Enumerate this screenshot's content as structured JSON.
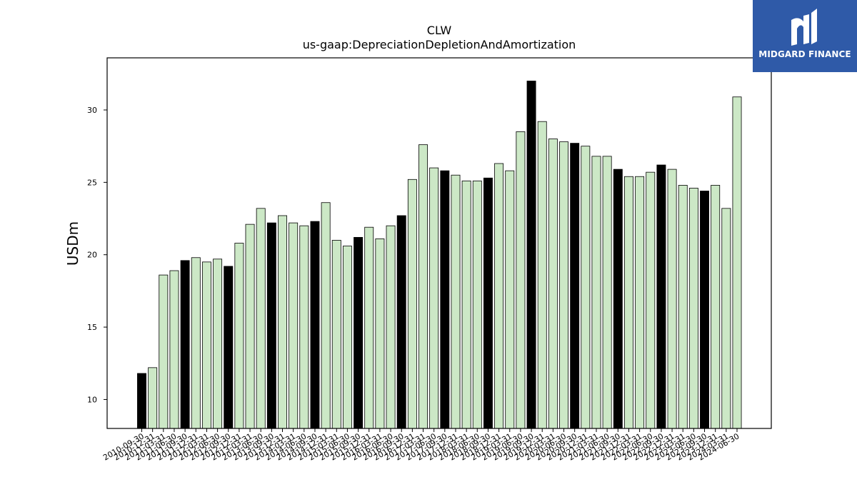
{
  "brand": {
    "name": "MIDGARD FINANCE",
    "color": "#2f5aa8"
  },
  "chart_data": {
    "type": "bar",
    "title": "CLW",
    "subtitle": "us-gaap:DepreciationDepletionAndAmortization",
    "ylabel": "USDm",
    "xlabel": "",
    "ylim": [
      8,
      33.6
    ],
    "yticks": [
      10,
      15,
      20,
      25,
      30
    ],
    "grid": false,
    "colors": {
      "default": "#cce8c6",
      "annual": "#000000",
      "edge": "#000000"
    },
    "categories": [
      "2010-09-30",
      "2010-12-31",
      "2011-03-31",
      "2011-06-30",
      "2011-09-30",
      "2011-12-31",
      "2012-03-31",
      "2012-06-30",
      "2012-09-30",
      "2012-12-31",
      "2013-03-31",
      "2013-06-30",
      "2013-09-30",
      "2013-12-31",
      "2014-03-31",
      "2014-06-30",
      "2014-09-30",
      "2014-12-31",
      "2015-03-31",
      "2015-06-30",
      "2015-09-30",
      "2015-12-31",
      "2016-03-31",
      "2016-06-30",
      "2016-09-30",
      "2016-12-31",
      "2017-03-31",
      "2017-06-30",
      "2017-09-30",
      "2017-12-31",
      "2018-03-31",
      "2018-06-30",
      "2018-09-30",
      "2018-12-31",
      "2019-03-31",
      "2019-06-30",
      "2019-09-30",
      "2019-12-31",
      "2020-03-31",
      "2020-06-30",
      "2020-09-30",
      "2020-12-31",
      "2021-03-31",
      "2021-06-30",
      "2021-09-30",
      "2021-12-31",
      "2022-03-31",
      "2022-06-30",
      "2022-09-30",
      "2022-12-31",
      "2023-03-31",
      "2023-06-30",
      "2023-09-30",
      "2023-12-31",
      "2024-03-31",
      "2024-06-30"
    ],
    "values": [
      11.8,
      12.2,
      18.6,
      18.9,
      19.6,
      19.8,
      19.5,
      19.7,
      19.2,
      20.8,
      22.1,
      23.2,
      22.2,
      22.7,
      22.2,
      22.0,
      22.3,
      23.6,
      21.0,
      20.6,
      21.2,
      21.9,
      21.1,
      22.0,
      22.7,
      25.2,
      27.6,
      26.0,
      25.8,
      25.5,
      25.1,
      25.1,
      25.3,
      26.3,
      25.8,
      28.5,
      32.0,
      29.2,
      28.0,
      27.8,
      27.7,
      27.5,
      26.8,
      26.8,
      25.9,
      25.4,
      25.4,
      25.7,
      26.2,
      25.9,
      24.8,
      24.6,
      24.4,
      24.8,
      23.2,
      30.9
    ]
  }
}
